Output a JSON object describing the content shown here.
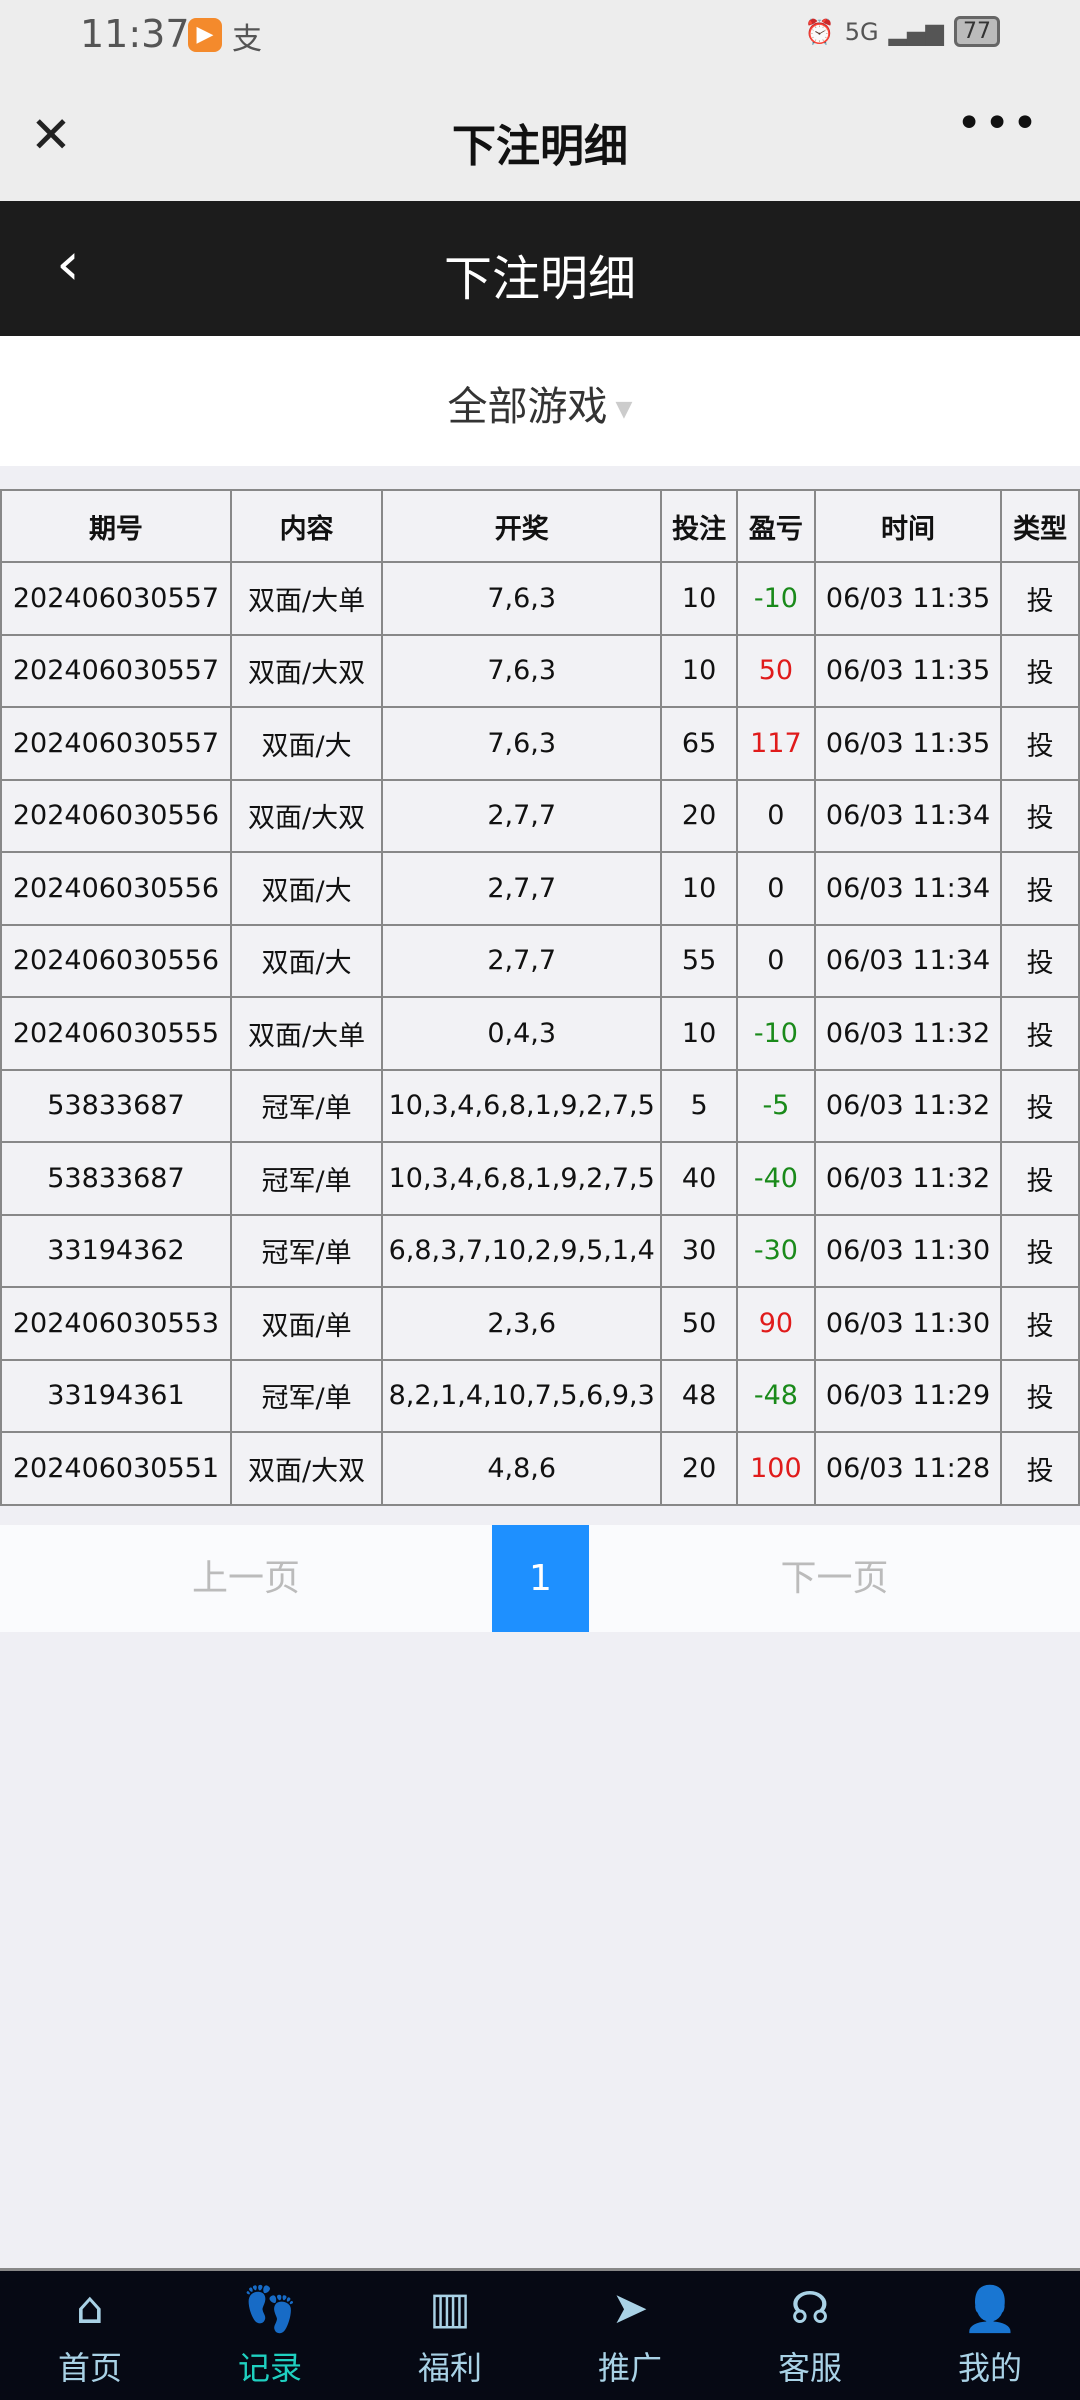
{
  "status": {
    "time": "11:37",
    "signal": "5G",
    "battery": "77"
  },
  "wechat": {
    "title": "下注明细"
  },
  "appbar": {
    "title": "下注明细"
  },
  "filter": {
    "selected": "全部游戏"
  },
  "table": {
    "headers": [
      "期号",
      "内容",
      "开奖",
      "投注",
      "盈亏",
      "时间",
      "类型"
    ],
    "rows": [
      [
        "202406030557",
        "双面/大单",
        "7,6,3",
        "10",
        "-10",
        "06/03 11:35",
        "投"
      ],
      [
        "202406030557",
        "双面/大双",
        "7,6,3",
        "10",
        "50",
        "06/03 11:35",
        "投"
      ],
      [
        "202406030557",
        "双面/大",
        "7,6,3",
        "65",
        "117",
        "06/03 11:35",
        "投"
      ],
      [
        "202406030556",
        "双面/大双",
        "2,7,7",
        "20",
        "0",
        "06/03 11:34",
        "投"
      ],
      [
        "202406030556",
        "双面/大",
        "2,7,7",
        "10",
        "0",
        "06/03 11:34",
        "投"
      ],
      [
        "202406030556",
        "双面/大",
        "2,7,7",
        "55",
        "0",
        "06/03 11:34",
        "投"
      ],
      [
        "202406030555",
        "双面/大单",
        "0,4,3",
        "10",
        "-10",
        "06/03 11:32",
        "投"
      ],
      [
        "53833687",
        "冠军/单",
        "10,3,4,6,8,1,9,2,7,5",
        "5",
        "-5",
        "06/03 11:32",
        "投"
      ],
      [
        "53833687",
        "冠军/单",
        "10,3,4,6,8,1,9,2,7,5",
        "40",
        "-40",
        "06/03 11:32",
        "投"
      ],
      [
        "33194362",
        "冠军/单",
        "6,8,3,7,10,2,9,5,1,4",
        "30",
        "-30",
        "06/03 11:30",
        "投"
      ],
      [
        "202406030553",
        "双面/单",
        "2,3,6",
        "50",
        "90",
        "06/03 11:30",
        "投"
      ],
      [
        "33194361",
        "冠军/单",
        "8,2,1,4,10,7,5,6,9,3",
        "48",
        "-48",
        "06/03 11:29",
        "投"
      ],
      [
        "202406030551",
        "双面/大双",
        "4,8,6",
        "20",
        "100",
        "06/03 11:28",
        "投"
      ]
    ]
  },
  "pager": {
    "prev": "上一页",
    "current": "1",
    "next": "下一页"
  },
  "nav": [
    {
      "label": "首页",
      "icon": "home-icon"
    },
    {
      "label": "记录",
      "icon": "footprint-icon",
      "active": true
    },
    {
      "label": "福利",
      "icon": "gift-icon"
    },
    {
      "label": "推广",
      "icon": "paper-plane-icon"
    },
    {
      "label": "客服",
      "icon": "headset-icon"
    },
    {
      "label": "我的",
      "icon": "user-icon"
    }
  ],
  "colors": {
    "profit": "#e01b1b",
    "loss": "#1a8a1a",
    "accent": "#1e90ff",
    "nav_active": "#1fd0c0"
  }
}
